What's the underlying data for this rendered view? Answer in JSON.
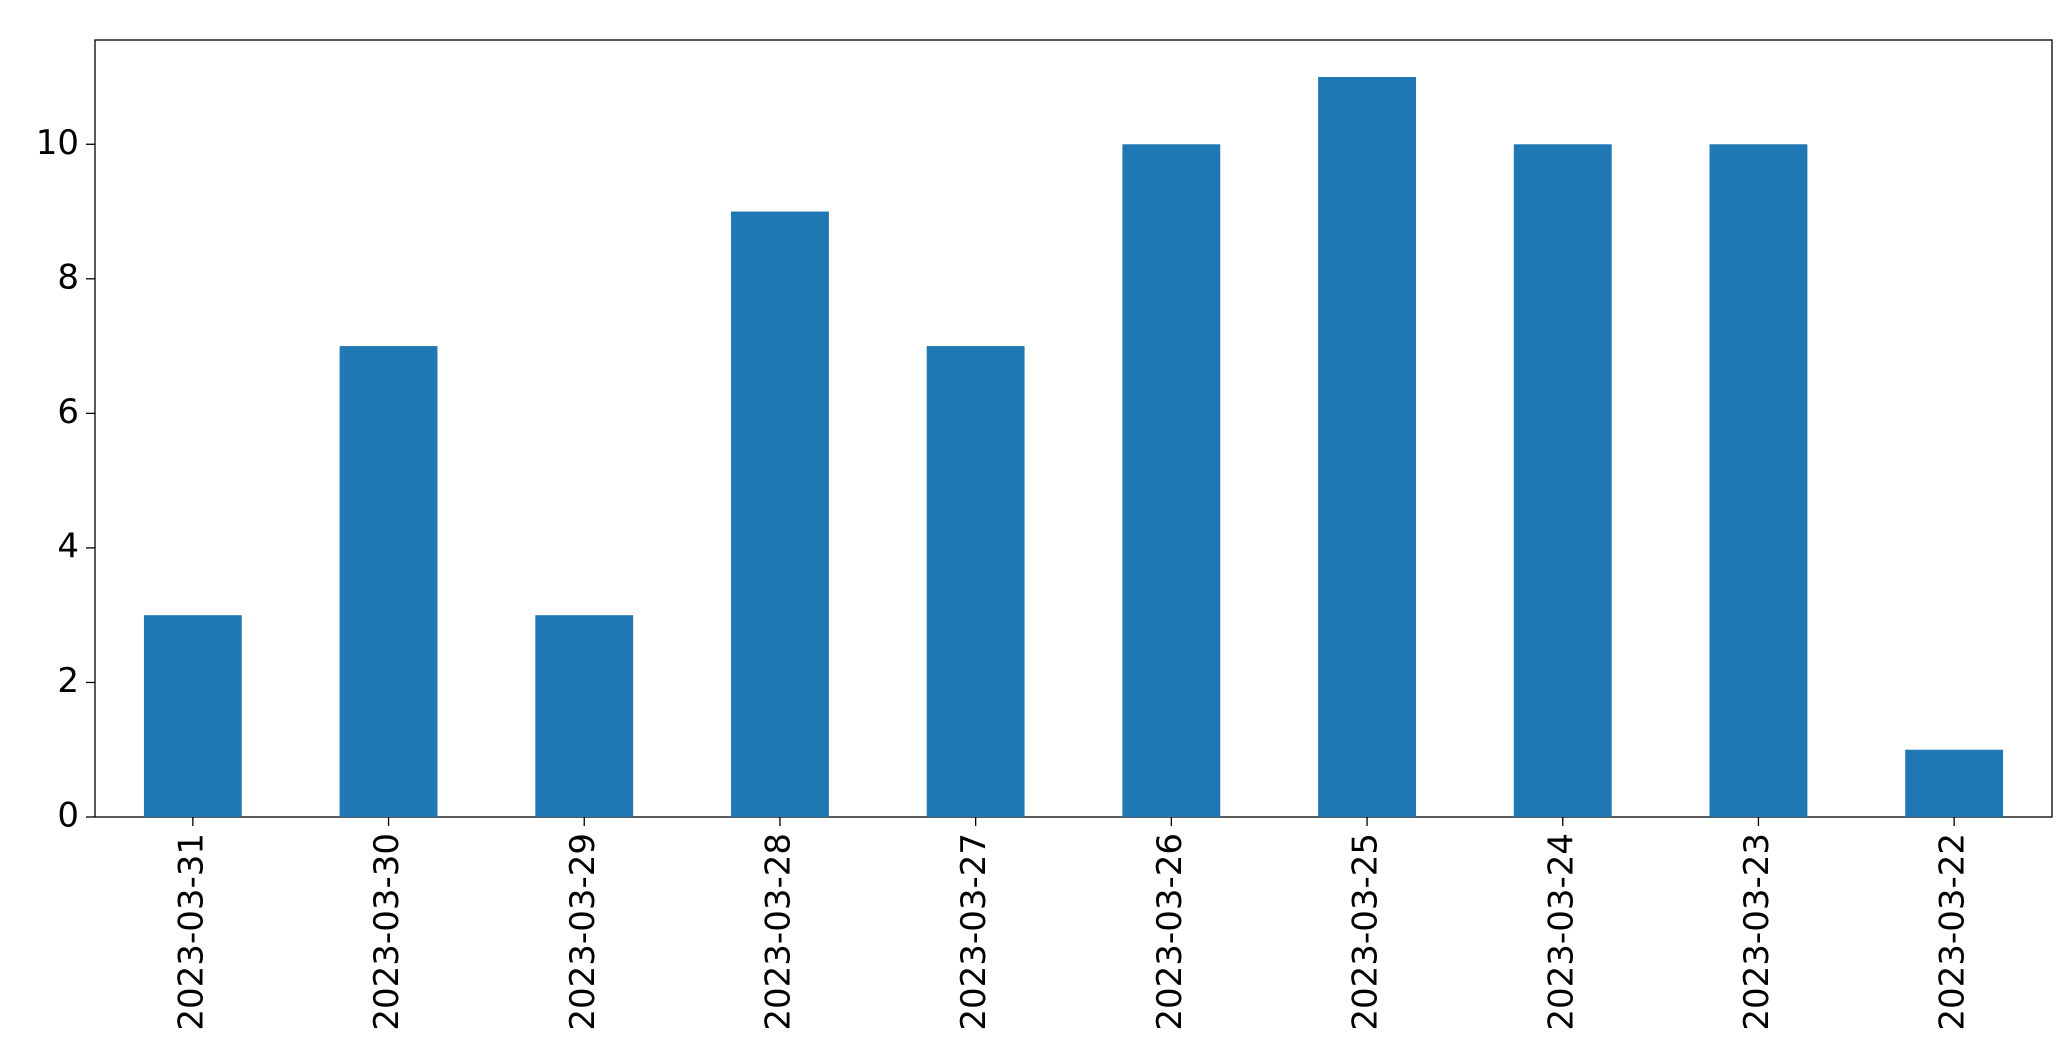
{
  "chart_data": {
    "type": "bar",
    "categories": [
      "2023-03-31",
      "2023-03-30",
      "2023-03-29",
      "2023-03-28",
      "2023-03-27",
      "2023-03-26",
      "2023-03-25",
      "2023-03-24",
      "2023-03-23",
      "2023-03-22"
    ],
    "values": [
      3,
      7,
      3,
      9,
      7,
      10,
      11,
      10,
      10,
      1
    ],
    "color": "#1f77b4",
    "ylim": [
      0,
      11.55
    ],
    "yticks": [
      0,
      2,
      4,
      6,
      8,
      10
    ],
    "grid": false
  }
}
